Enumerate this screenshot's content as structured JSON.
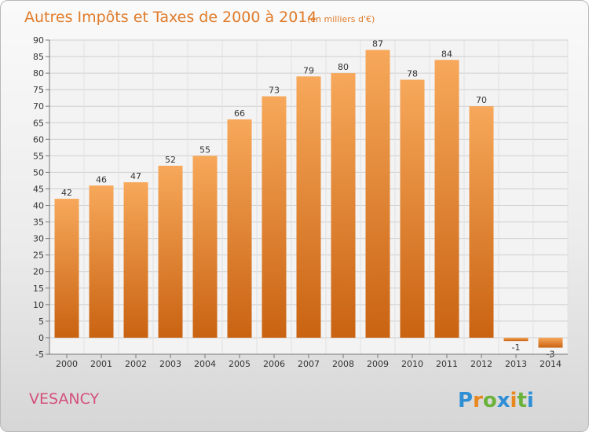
{
  "chart_data": {
    "type": "bar",
    "title": "Autres Impôts et Taxes de 2000 à 2014",
    "subtitle": "(en milliers d'€)",
    "categories": [
      "2000",
      "2001",
      "2002",
      "2003",
      "2004",
      "2005",
      "2006",
      "2007",
      "2008",
      "2009",
      "2010",
      "2011",
      "2012",
      "2013",
      "2014"
    ],
    "values": [
      42,
      46,
      47,
      52,
      55,
      66,
      73,
      79,
      80,
      87,
      78,
      84,
      70,
      -1,
      -3
    ],
    "value_labels": [
      "42",
      "46",
      "47",
      "52",
      "55",
      "66",
      "73",
      "79",
      "80",
      "87",
      "78",
      "84",
      "70",
      "-1",
      "-3"
    ],
    "ylim": [
      -5,
      90
    ],
    "yticks": [
      -5,
      0,
      5,
      10,
      15,
      20,
      25,
      30,
      35,
      40,
      45,
      50,
      55,
      60,
      65,
      70,
      75,
      80,
      85,
      90
    ],
    "grid": true,
    "colors": {
      "bar_light": "#f7a85a",
      "bar_dark": "#c96312",
      "title": "#e07b2a"
    }
  },
  "location": "VESANCY",
  "brand": {
    "letters": [
      "P",
      "r",
      "o",
      "x",
      "i",
      "t",
      "i"
    ],
    "colors": [
      "#2f8fd5",
      "#e8871e",
      "#6bb23a",
      "#2f8fd5",
      "#e8871e",
      "#6bb23a",
      "#2f8fd5"
    ]
  }
}
